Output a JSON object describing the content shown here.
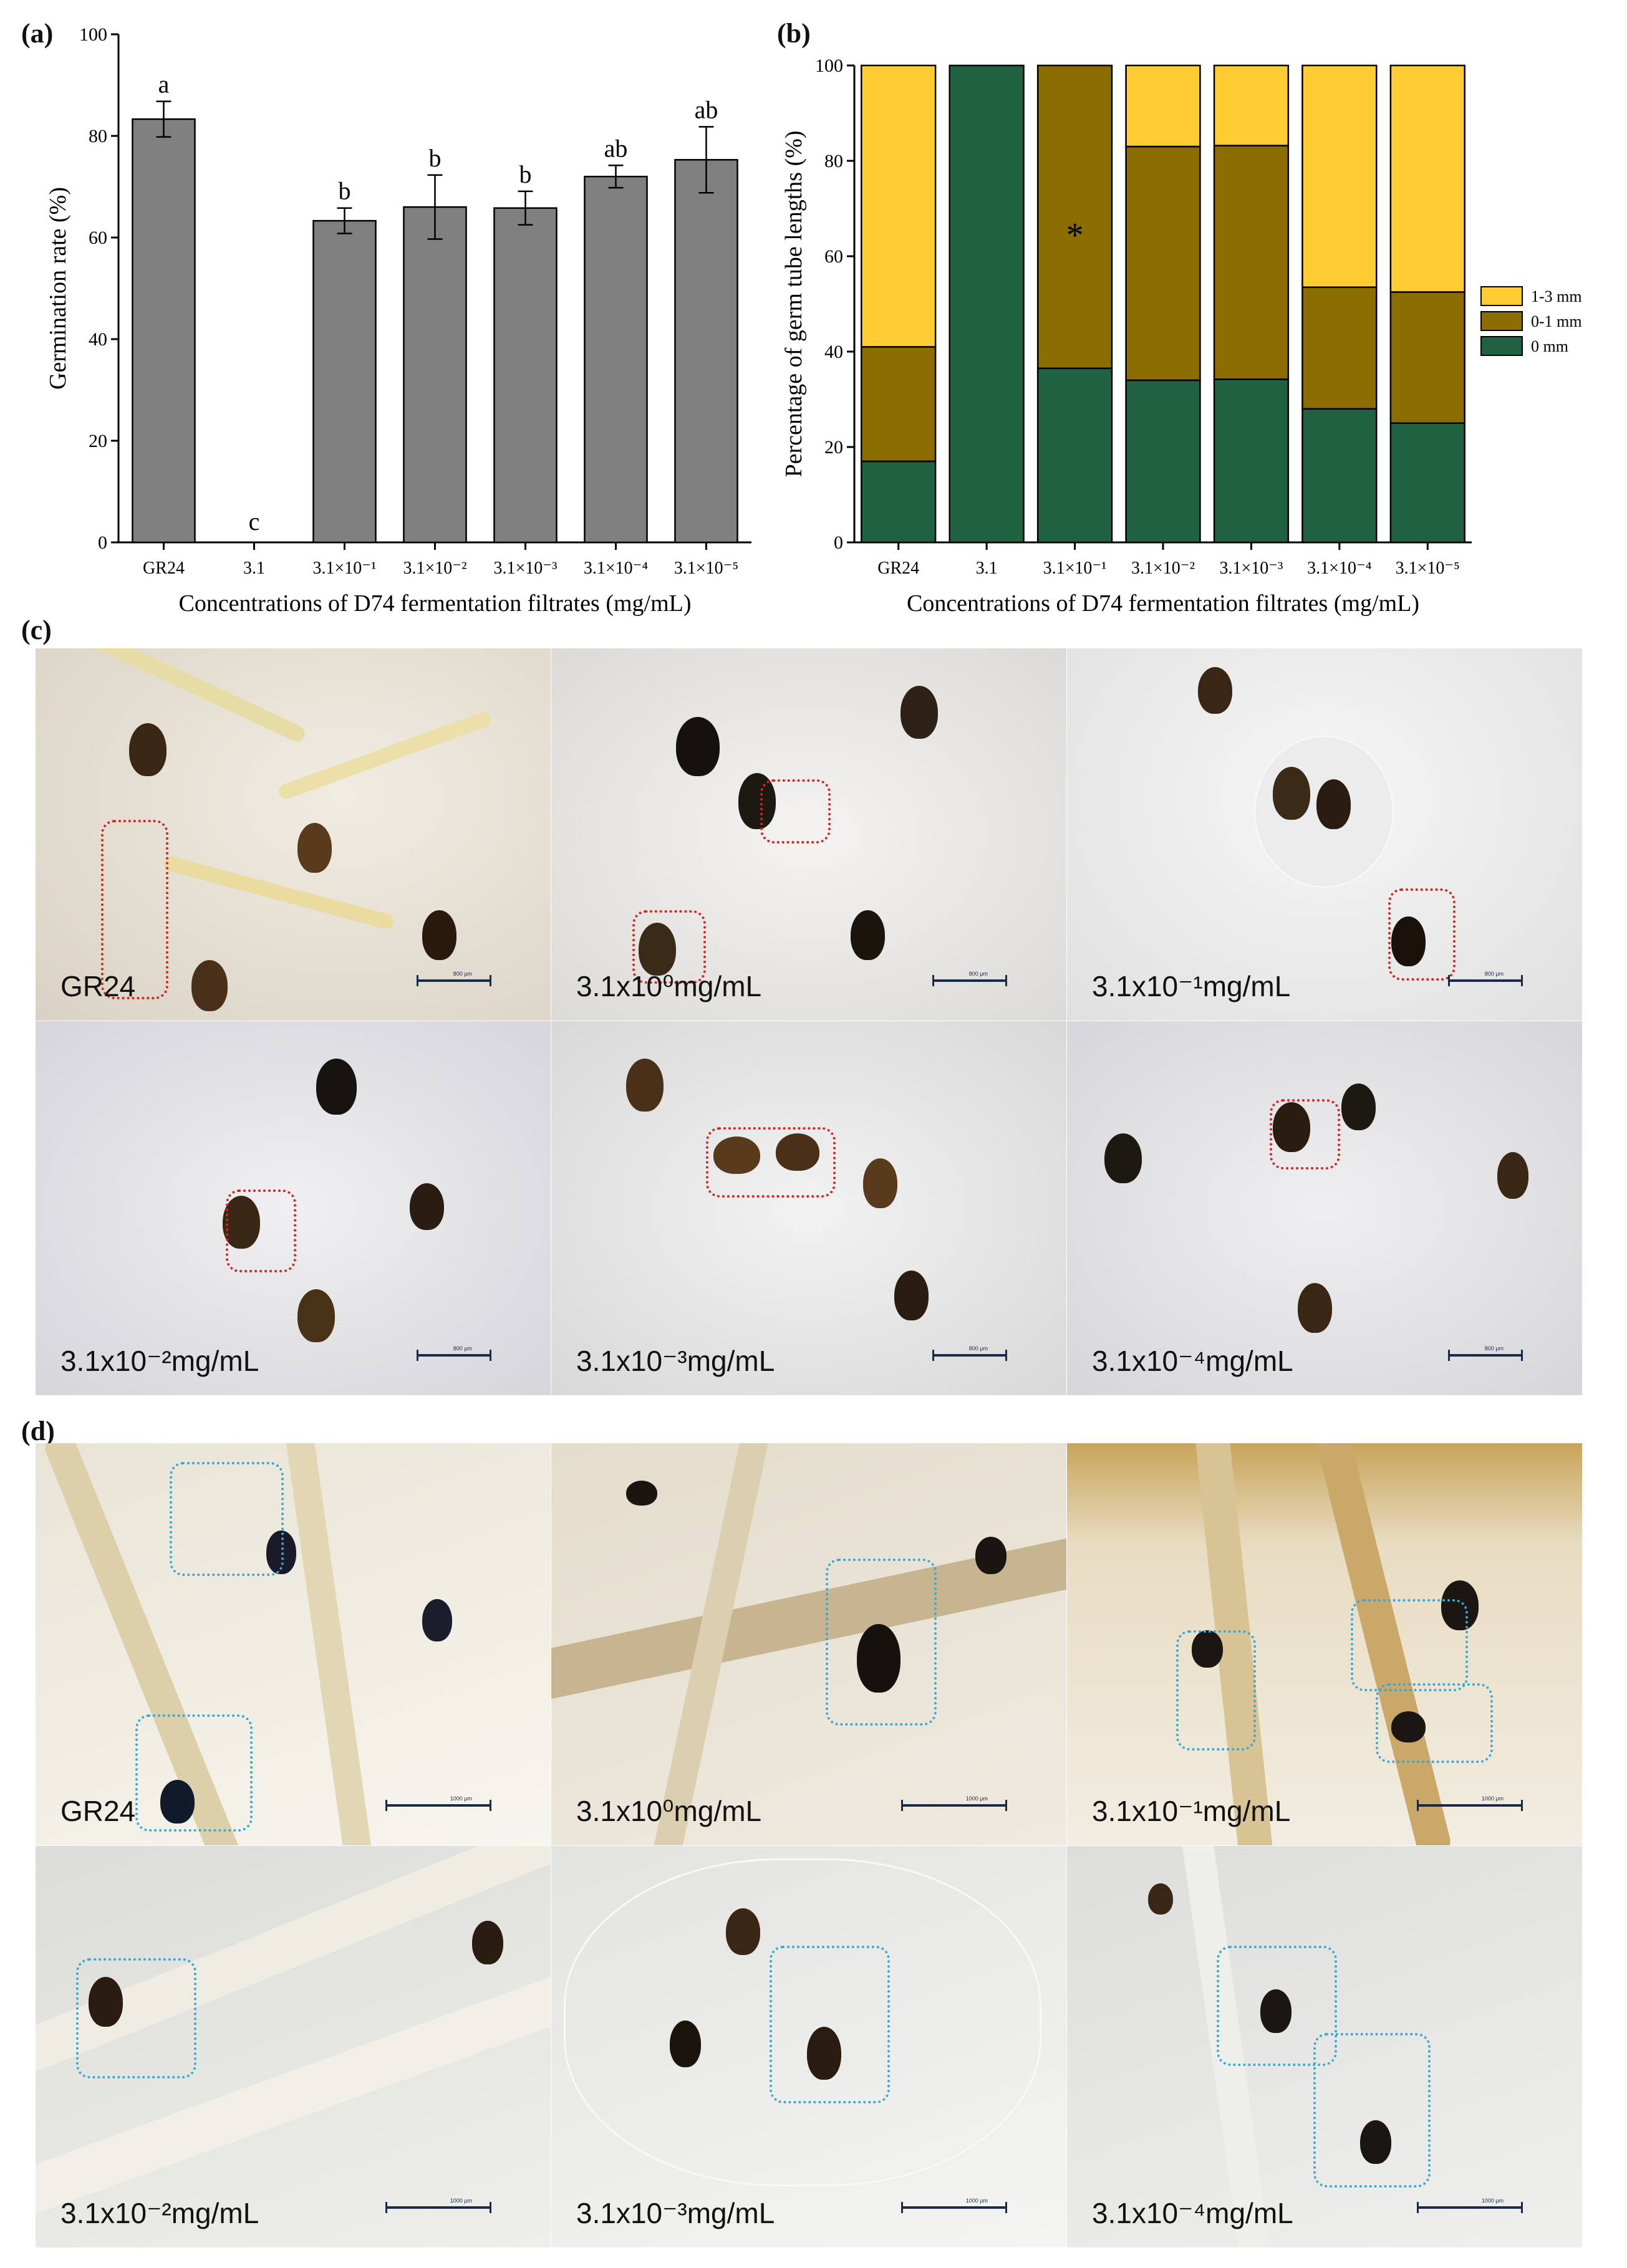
{
  "panels": {
    "a": "(a)",
    "b": "(b)",
    "c": "(c)",
    "d": "(d)"
  },
  "chart_data": [
    {
      "type": "bar",
      "panel": "(a)",
      "categories": [
        "GR24",
        "3.1",
        "3.1×10⁻¹",
        "3.1×10⁻²",
        "3.1×10⁻³",
        "3.1×10⁻⁴",
        "3.1×10⁻⁵"
      ],
      "values": [
        83.3,
        0,
        63.3,
        66.0,
        65.8,
        72.0,
        75.3
      ],
      "errors": [
        3.5,
        0,
        2.5,
        6.3,
        3.3,
        2.2,
        6.5
      ],
      "significance": [
        "a",
        "c",
        "b",
        "b",
        "b",
        "ab",
        "ab"
      ],
      "xlabel": "Concentrations of D74 fermentation filtrates (mg/mL)",
      "ylabel": "Germination rate (%)",
      "ylim": [
        0,
        100
      ],
      "yticks": [
        0,
        20,
        40,
        60,
        80,
        100
      ],
      "color": "#808080"
    },
    {
      "type": "bar",
      "stacked": true,
      "panel": "(b)",
      "categories": [
        "GR24",
        "3.1",
        "3.1×10⁻¹",
        "3.1×10⁻²",
        "3.1×10⁻³",
        "3.1×10⁻⁴",
        "3.1×10⁻⁵"
      ],
      "series": [
        {
          "name": "0 mm",
          "color": "#1f6140",
          "values": [
            17,
            100,
            36.5,
            34,
            34.2,
            28,
            25
          ]
        },
        {
          "name": "0-1 mm",
          "color": "#8b6c00",
          "values": [
            24,
            0,
            63.5,
            49,
            49,
            25.5,
            27.5
          ]
        },
        {
          "name": "1-3 mm",
          "color": "#ffcc33",
          "values": [
            59,
            0,
            0,
            17,
            16.8,
            46.5,
            47.5
          ]
        }
      ],
      "legend_order": [
        "1-3 mm",
        "0-1 mm",
        "0 mm"
      ],
      "annotation": "*",
      "xlabel": "Concentrations of D74 fermentation filtrates (mg/mL)",
      "ylabel": "Percentage of germ tube lengths (%)",
      "ylim": [
        0,
        100
      ],
      "yticks": [
        0,
        20,
        40,
        60,
        80,
        100
      ],
      "legend_position": "right"
    }
  ],
  "photos_c": [
    {
      "label": "GR24",
      "scale": "800 μm"
    },
    {
      "label": "3.1x10⁰mg/mL",
      "scale": "800 μm"
    },
    {
      "label": "3.1x10⁻¹mg/mL",
      "scale": "800 μm"
    },
    {
      "label": "3.1x10⁻²mg/mL",
      "scale": "800 μm"
    },
    {
      "label": "3.1x10⁻³mg/mL",
      "scale": "800 μm"
    },
    {
      "label": "3.1x10⁻⁴mg/mL",
      "scale": "800 μm"
    }
  ],
  "photos_d": [
    {
      "label": "GR24",
      "scale": "1000 μm"
    },
    {
      "label": "3.1x10⁰mg/mL",
      "scale": "1000 μm"
    },
    {
      "label": "3.1x10⁻¹mg/mL",
      "scale": "1000 μm"
    },
    {
      "label": "3.1x10⁻²mg/mL",
      "scale": "1000 μm"
    },
    {
      "label": "3.1x10⁻³mg/mL",
      "scale": "1000 μm"
    },
    {
      "label": "3.1x10⁻⁴mg/mL",
      "scale": "1000 μm"
    }
  ]
}
